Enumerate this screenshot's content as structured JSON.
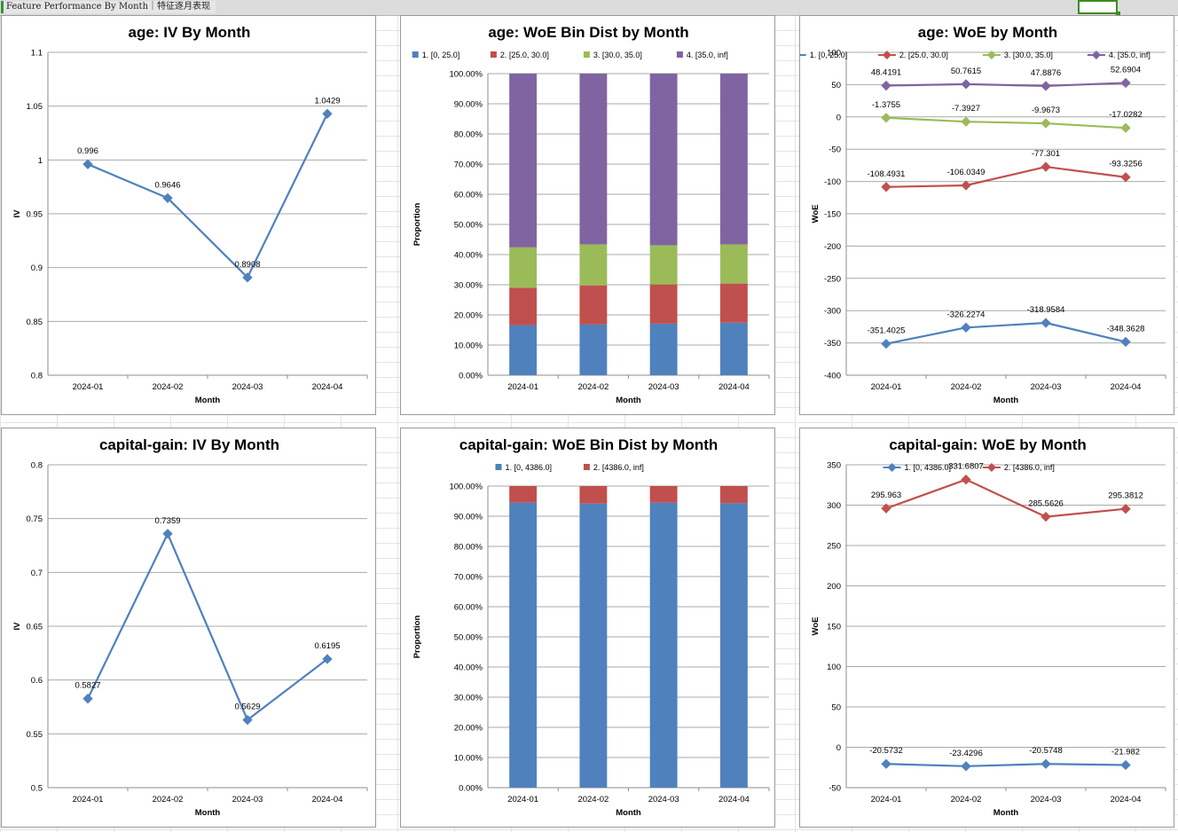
{
  "sheet": {
    "tab_label": "Feature Performance By Month｜特征逐月表现"
  },
  "chart_data": [
    {
      "id": "age-iv",
      "type": "line",
      "title": "age: IV By Month",
      "xlabel": "Month",
      "ylabel": "IV",
      "categories": [
        "2024-01",
        "2024-02",
        "2024-03",
        "2024-04"
      ],
      "ylim": [
        0.8,
        1.1
      ],
      "ystep": 0.05,
      "yformat": "plain",
      "grid": true,
      "legend": "none",
      "series": [
        {
          "values": [
            0.996,
            0.9646,
            0.8908,
            1.0429
          ],
          "color": "#4f81bd",
          "labels": [
            "0.996",
            "0.9646",
            "0.8908",
            "1.0429"
          ]
        }
      ]
    },
    {
      "id": "age-dist",
      "type": "bar",
      "stacked": true,
      "title": "age: WoE Bin Dist by Month",
      "xlabel": "Month",
      "ylabel": "Proportion",
      "categories": [
        "2024-01",
        "2024-02",
        "2024-03",
        "2024-04"
      ],
      "ylim": [
        0,
        1
      ],
      "ystep": 0.1,
      "yformat": "percent",
      "grid": true,
      "legend": "top",
      "series": [
        {
          "name": "1. [0, 25.0]",
          "color": "#4f81bd",
          "values": [
            0.166,
            0.168,
            0.171,
            0.174
          ]
        },
        {
          "name": "2. [25.0, 30.0]",
          "color": "#c0504d",
          "values": [
            0.124,
            0.13,
            0.13,
            0.13
          ]
        },
        {
          "name": "3. [30.0, 35.0]",
          "color": "#9bbb59",
          "values": [
            0.134,
            0.136,
            0.13,
            0.13
          ]
        },
        {
          "name": "4. [35.0, inf]",
          "color": "#8064a2",
          "values": [
            0.576,
            0.566,
            0.569,
            0.566
          ]
        }
      ]
    },
    {
      "id": "age-woe",
      "type": "line",
      "title": "age: WoE by Month",
      "xlabel": "Month",
      "ylabel": "WoE",
      "categories": [
        "2024-01",
        "2024-02",
        "2024-03",
        "2024-04"
      ],
      "ylim": [
        -400,
        100
      ],
      "ystep": 50,
      "yformat": "plain",
      "grid": true,
      "legend": "top",
      "series": [
        {
          "name": "1. [0, 25.0]",
          "color": "#4f81bd",
          "values": [
            -351.4025,
            -326.2274,
            -318.9584,
            -348.3628
          ],
          "labels": [
            "-351.4025",
            "-326.2274",
            "-318.9584",
            "-348.3628"
          ]
        },
        {
          "name": "2. [25.0, 30.0]",
          "color": "#c0504d",
          "values": [
            -108.4931,
            -106.0349,
            -77.301,
            -93.3256
          ],
          "labels": [
            "-108.4931",
            "-106.0349",
            "-77.301",
            "-93.3256"
          ]
        },
        {
          "name": "3. [30.0, 35.0]",
          "color": "#9bbb59",
          "values": [
            -1.3755,
            -7.3927,
            -9.9673,
            -17.0282
          ],
          "labels": [
            "-1.3755",
            "-7.3927",
            "-9.9673",
            "-17.0282"
          ]
        },
        {
          "name": "4. [35.0, inf]",
          "color": "#8064a2",
          "values": [
            48.4191,
            50.7615,
            47.8876,
            52.6904
          ],
          "labels": [
            "48.4191",
            "50.7615",
            "47.8876",
            "52.6904"
          ]
        }
      ]
    },
    {
      "id": "cg-iv",
      "type": "line",
      "title": "capital-gain: IV By Month",
      "xlabel": "Month",
      "ylabel": "IV",
      "categories": [
        "2024-01",
        "2024-02",
        "2024-03",
        "2024-04"
      ],
      "ylim": [
        0.5,
        0.8
      ],
      "ystep": 0.05,
      "yformat": "plain",
      "grid": true,
      "legend": "none",
      "series": [
        {
          "values": [
            0.5827,
            0.7359,
            0.5629,
            0.6195
          ],
          "color": "#4f81bd",
          "labels": [
            "0.5827",
            "0.7359",
            "0.5629",
            "0.6195"
          ]
        }
      ]
    },
    {
      "id": "cg-dist",
      "type": "bar",
      "stacked": true,
      "title": "capital-gain: WoE Bin Dist by Month",
      "xlabel": "Month",
      "ylabel": "Proportion",
      "categories": [
        "2024-01",
        "2024-02",
        "2024-03",
        "2024-04"
      ],
      "ylim": [
        0,
        1
      ],
      "ystep": 0.1,
      "yformat": "percent",
      "grid": true,
      "legend": "top",
      "series": [
        {
          "name": "1. [0, 4386.0]",
          "color": "#4f81bd",
          "values": [
            0.945,
            0.942,
            0.945,
            0.943
          ]
        },
        {
          "name": "2. [4386.0, inf]",
          "color": "#c0504d",
          "values": [
            0.055,
            0.058,
            0.055,
            0.057
          ]
        }
      ]
    },
    {
      "id": "cg-woe",
      "type": "line",
      "title": "capital-gain: WoE by Month",
      "xlabel": "Month",
      "ylabel": "WoE",
      "categories": [
        "2024-01",
        "2024-02",
        "2024-03",
        "2024-04"
      ],
      "ylim": [
        -50,
        350
      ],
      "ystep": 50,
      "yformat": "plain",
      "grid": true,
      "legend": "top",
      "series": [
        {
          "name": "1. [0, 4386.0]",
          "color": "#4f81bd",
          "values": [
            -20.5732,
            -23.4296,
            -20.5748,
            -21.982
          ],
          "labels": [
            "-20.5732",
            "-23.4296",
            "-20.5748",
            "-21.982"
          ]
        },
        {
          "name": "2. [4386.0, inf]",
          "color": "#c0504d",
          "values": [
            295.963,
            331.6807,
            285.5626,
            295.3812
          ],
          "labels": [
            "295.963",
            "331.6807",
            "285.5626",
            "295.3812"
          ]
        }
      ]
    }
  ]
}
